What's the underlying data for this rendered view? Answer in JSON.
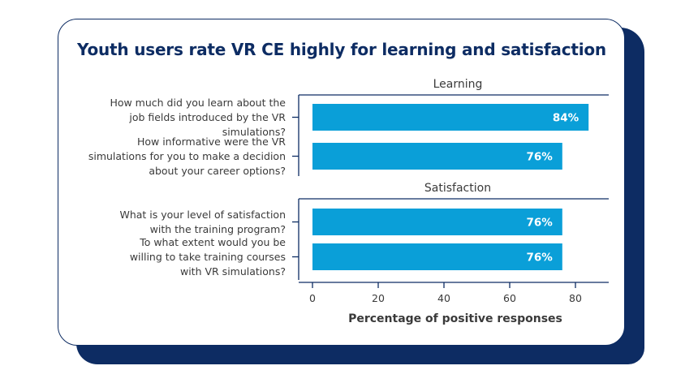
{
  "chart_data": {
    "type": "bar",
    "orientation": "horizontal",
    "title": "Youth users rate VR CE highly for learning and satisfaction",
    "xlabel": "Percentage of positive responses",
    "xlim": [
      0,
      90
    ],
    "xticks": [
      0,
      20,
      40,
      60,
      80
    ],
    "groups": [
      {
        "name": "Learning",
        "bars": [
          {
            "question": [
              "How much did you learn about the",
              "job fields introduced by the VR",
              "simulations?"
            ],
            "value": 84,
            "label": "84%"
          },
          {
            "question": [
              "How informative were the VR",
              "simulations for you to make a decidion",
              "about your career options?"
            ],
            "value": 76,
            "label": "76%"
          }
        ]
      },
      {
        "name": "Satisfaction",
        "bars": [
          {
            "question": [
              "What is your level of satisfaction",
              "with the training program?"
            ],
            "value": 76,
            "label": "76%"
          },
          {
            "question": [
              "To what extent would you be",
              "willing to take training courses",
              "with VR simulations?"
            ],
            "value": 76,
            "label": "76%"
          }
        ]
      }
    ]
  },
  "colors": {
    "bar": "#0a9fd8",
    "navy": "#0d2c63",
    "axis": "#0d2c63",
    "text": "#3a3a3a"
  }
}
